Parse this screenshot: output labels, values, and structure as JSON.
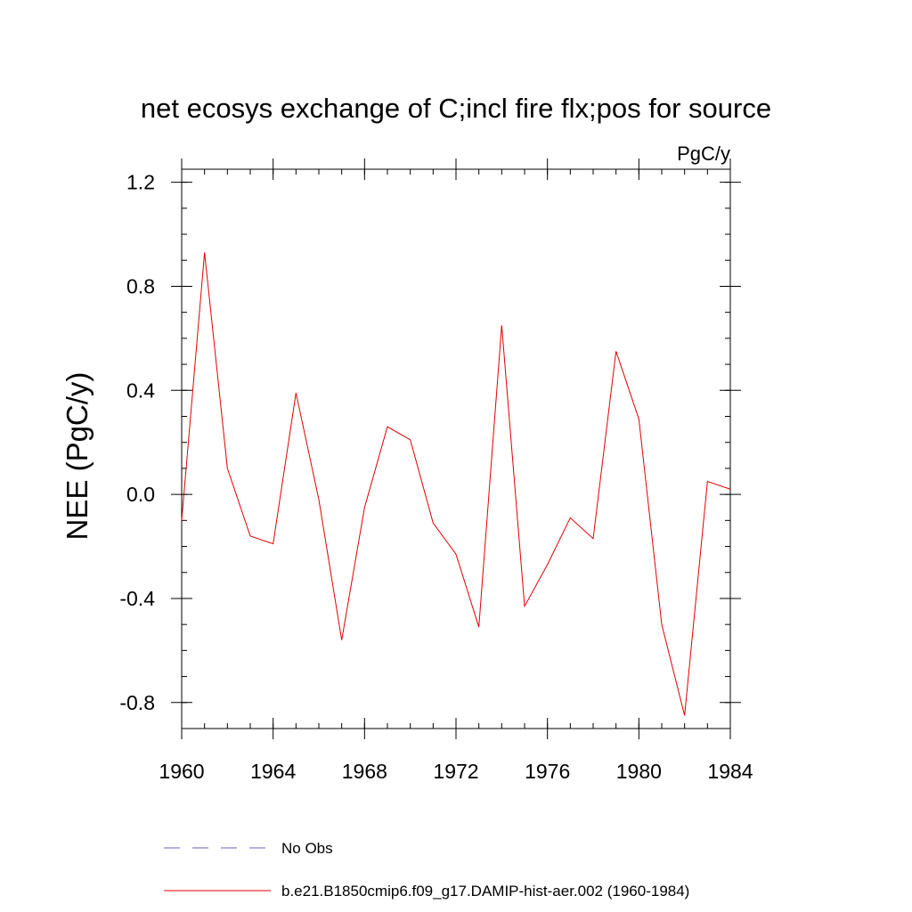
{
  "chart_data": {
    "type": "line",
    "title": "net ecosys exchange of C;incl fire flx;pos for source",
    "units_label": "PgC/y",
    "ylabel": "NEE  (PgC/y)",
    "xlabel": "",
    "xlim": [
      1960,
      1984
    ],
    "ylim": [
      -0.9,
      1.25
    ],
    "x_ticks": [
      1960,
      1964,
      1968,
      1972,
      1976,
      1980,
      1984
    ],
    "x_tick_labels": [
      "1960",
      "1964",
      "1968",
      "1972",
      "1976",
      "1980",
      "1984"
    ],
    "y_ticks": [
      -0.8,
      -0.4,
      0.0,
      0.4,
      0.8,
      1.2
    ],
    "y_tick_labels": [
      "-0.8",
      "-0.4",
      "0.0",
      "0.4",
      "0.8",
      "1.2"
    ],
    "x_minor_step": 1,
    "y_minor_step": 0.1,
    "grid": false,
    "legend_position": "bottom",
    "series": [
      {
        "name": "No Obs",
        "color": "#6060c0",
        "dash": "dashed",
        "x": [],
        "values": []
      },
      {
        "name": "b.e21.B1850cmip6.f09_g17.DAMIP-hist-aer.002 (1960-1984)",
        "color": "#e00000",
        "dash": "solid",
        "x": [
          1960,
          1961,
          1962,
          1963,
          1964,
          1965,
          1966,
          1967,
          1968,
          1969,
          1970,
          1971,
          1972,
          1973,
          1974,
          1975,
          1976,
          1977,
          1978,
          1979,
          1980,
          1981,
          1982,
          1983,
          1984
        ],
        "values": [
          -0.1,
          0.93,
          0.1,
          -0.16,
          -0.19,
          0.39,
          -0.02,
          -0.56,
          -0.05,
          0.26,
          0.21,
          -0.11,
          -0.23,
          -0.51,
          0.65,
          -0.43,
          -0.27,
          -0.09,
          -0.17,
          0.55,
          0.29,
          -0.5,
          -0.85,
          0.05,
          0.02
        ]
      }
    ]
  }
}
